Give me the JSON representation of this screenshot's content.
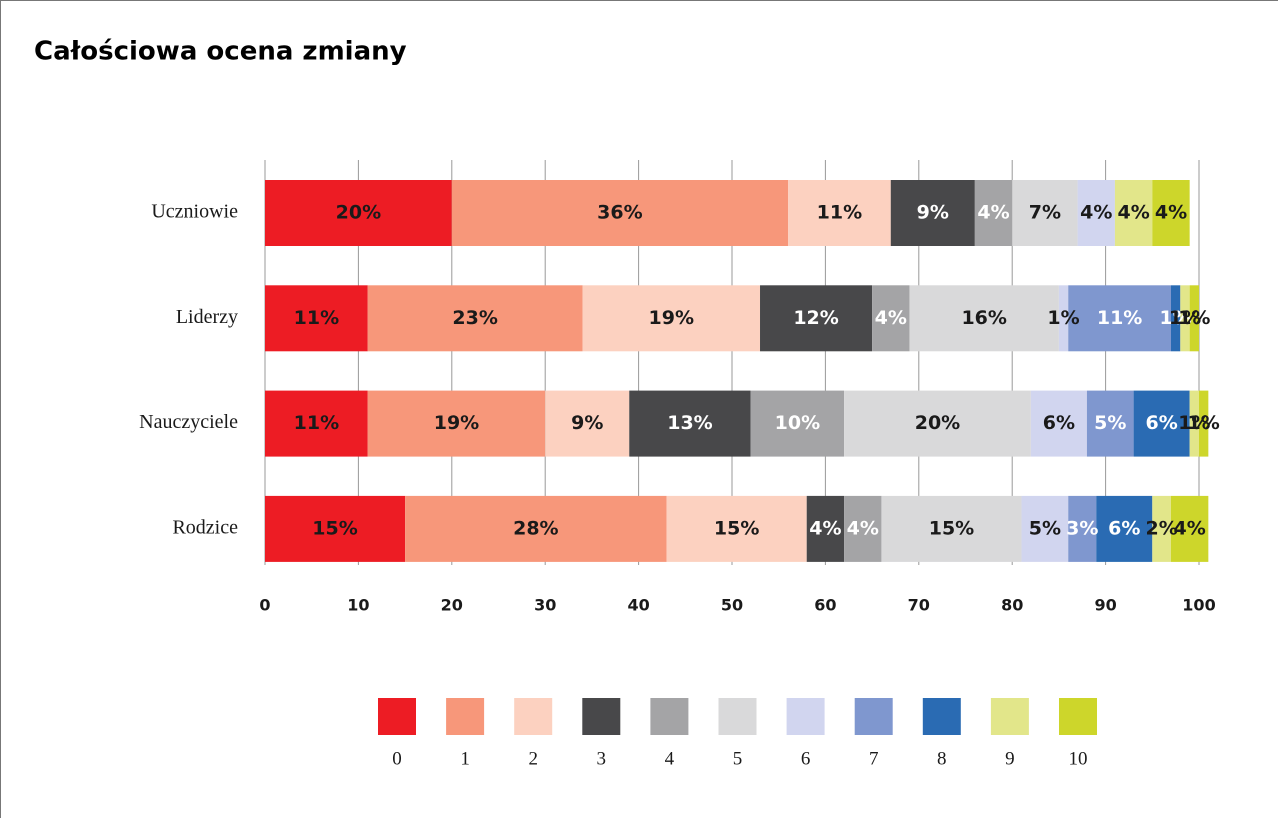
{
  "chart_data": {
    "type": "stacked_barh",
    "title": "Całościowa ocena zmiany",
    "categories": [
      "Uczniowie",
      "Liderzy",
      "Nauczyciele",
      "Rodzice"
    ],
    "series": [
      {
        "name": "0",
        "color": "#ed1c24",
        "label_color": "#1a1a1a",
        "values": [
          20,
          11,
          11,
          15
        ],
        "value_labels": [
          "20%",
          "11%",
          "11%",
          "15%"
        ]
      },
      {
        "name": "1",
        "color": "#f7977a",
        "label_color": "#1a1a1a",
        "values": [
          36,
          23,
          19,
          28
        ],
        "value_labels": [
          "36%",
          "23%",
          "19%",
          "28%"
        ]
      },
      {
        "name": "2",
        "color": "#fcd1c0",
        "label_color": "#1a1a1a",
        "values": [
          11,
          19,
          9,
          15
        ],
        "value_labels": [
          "11%",
          "19%",
          "9%",
          "15%"
        ]
      },
      {
        "name": "3",
        "color": "#48484a",
        "label_color": "#ffffff",
        "values": [
          9,
          12,
          13,
          4
        ],
        "value_labels": [
          "9%",
          "12%",
          "13%",
          "4%"
        ]
      },
      {
        "name": "4",
        "color": "#a4a4a6",
        "label_color": "#ffffff",
        "values": [
          4,
          4,
          10,
          4
        ],
        "value_labels": [
          "4%",
          "4%",
          "10%",
          "4%"
        ]
      },
      {
        "name": "5",
        "color": "#d9d9da",
        "label_color": "#1a1a1a",
        "values": [
          7,
          16,
          20,
          15
        ],
        "value_labels": [
          "7%",
          "16%",
          "20%",
          "15%"
        ]
      },
      {
        "name": "6",
        "color": "#d1d5ef",
        "label_color": "#1a1a1a",
        "values": [
          4,
          1,
          6,
          5
        ],
        "value_labels": [
          "4%",
          "1%",
          "6%",
          "5%"
        ]
      },
      {
        "name": "7",
        "color": "#7f97cf",
        "label_color": "#ffffff",
        "values": [
          null,
          11,
          5,
          3
        ],
        "value_labels": [
          null,
          "11%",
          "5%",
          "3%"
        ]
      },
      {
        "name": "8",
        "color": "#2a6bb3",
        "label_color": "#ffffff",
        "values": [
          null,
          1,
          6,
          6
        ],
        "value_labels": [
          null,
          "1%",
          "6%",
          "6%"
        ]
      },
      {
        "name": "9",
        "color": "#e2e68a",
        "label_color": "#1a1a1a",
        "values": [
          4,
          1,
          1,
          2
        ],
        "value_labels": [
          "4%",
          "1%",
          "1%",
          "2%"
        ]
      },
      {
        "name": "10",
        "color": "#cdd62b",
        "label_color": "#1a1a1a",
        "values": [
          4,
          1,
          1,
          4
        ],
        "value_labels": [
          "4%",
          "1%",
          "1%",
          "4%"
        ]
      }
    ],
    "xlim": [
      0,
      100
    ],
    "xticks": [
      0,
      10,
      20,
      30,
      40,
      50,
      60,
      70,
      80,
      90,
      100
    ],
    "grid": true,
    "legend": "bottom"
  }
}
